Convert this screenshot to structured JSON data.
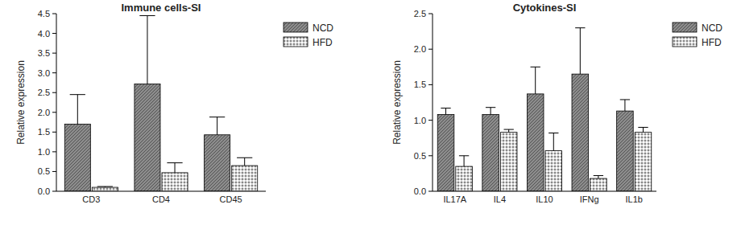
{
  "chart_data": [
    {
      "type": "bar",
      "title": "Immune cells-SI",
      "y_label": "Relative expression",
      "categories": [
        "CD3",
        "CD4",
        "CD45"
      ],
      "series": [
        {
          "name": "NCD",
          "color": "#8c8c8c",
          "values": [
            1.7,
            2.72,
            1.43
          ],
          "errors": [
            0.75,
            1.73,
            0.45
          ]
        },
        {
          "name": "HFD",
          "color": "#d9d9d9",
          "values": [
            0.1,
            0.47,
            0.65
          ],
          "errors": [
            0.02,
            0.25,
            0.2
          ]
        }
      ],
      "ylim": [
        0,
        4.5
      ],
      "yticks": [
        {
          "value": 0,
          "label": "0.0"
        },
        0.5,
        {
          "value": 1,
          "label": "1.0"
        },
        1.5,
        {
          "value": 2,
          "label": "2.0"
        },
        2.5,
        {
          "value": 3,
          "label": "3.0"
        },
        3.5,
        {
          "value": 4,
          "label": "4.0"
        },
        4.5
      ],
      "grid": false,
      "legend": "right"
    },
    {
      "type": "bar",
      "title": "Cytokines-SI",
      "y_label": "Relative expression",
      "categories": [
        "IL17A",
        "IL4",
        "IL10",
        "IFNg",
        "IL1b"
      ],
      "series": [
        {
          "name": "NCD",
          "color": "#8c8c8c",
          "values": [
            1.08,
            1.08,
            1.37,
            1.65,
            1.13
          ],
          "errors": [
            0.09,
            0.1,
            0.38,
            0.65,
            0.16
          ]
        },
        {
          "name": "HFD",
          "color": "#d9d9d9",
          "values": [
            0.35,
            0.83,
            0.57,
            0.18,
            0.83
          ],
          "errors": [
            0.15,
            0.04,
            0.25,
            0.04,
            0.07
          ]
        }
      ],
      "ylim": [
        0,
        2.5
      ],
      "yticks": [
        {
          "value": 0,
          "label": "0.0"
        },
        0.5,
        {
          "value": 1,
          "label": "1.0"
        },
        1.5,
        {
          "value": 2,
          "label": "2.0"
        },
        2.5
      ],
      "grid": false,
      "legend": "right"
    }
  ]
}
